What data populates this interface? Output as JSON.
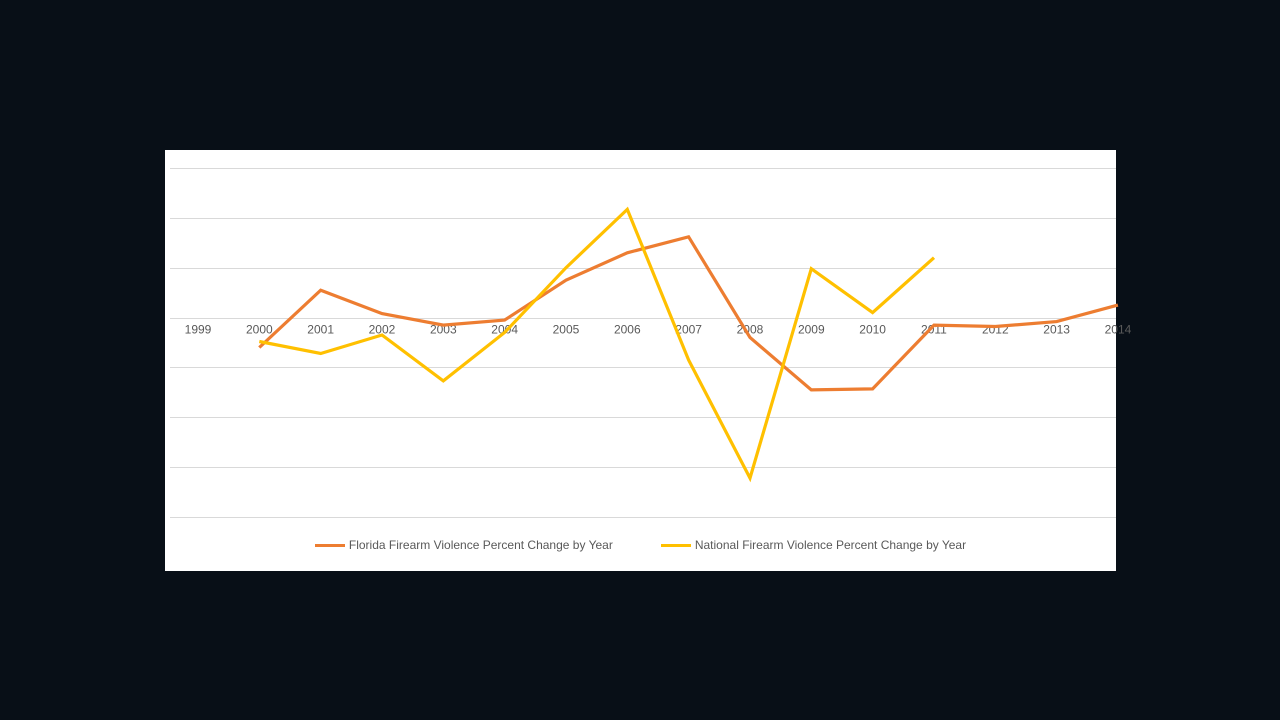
{
  "colors": {
    "florida": "#ed7d31",
    "national": "#ffc000",
    "background": "#080f17",
    "panel": "#ffffff",
    "grid": "#d9d9d9"
  },
  "chart_data": {
    "type": "line",
    "title": "",
    "xlabel": "",
    "ylabel": "",
    "categories": [
      "1999",
      "2000",
      "2001",
      "2002",
      "2003",
      "2004",
      "2005",
      "2006",
      "2007",
      "2008",
      "2009",
      "2010",
      "2011",
      "2012",
      "2013",
      "2014"
    ],
    "grid": true,
    "y_tick_labels_visible": false,
    "legend_placement": "bottom",
    "series": [
      {
        "name": "Florida Firearm Violence Percent Change by Year",
        "color": "#ed7d31",
        "values": [
          null,
          -0.6,
          0.55,
          0.08,
          -0.15,
          -0.05,
          0.75,
          1.3,
          1.62,
          -0.4,
          -1.45,
          -1.43,
          -0.15,
          -0.18,
          -0.08,
          0.25
        ]
      },
      {
        "name": "National Firearm Violence Percent Change by Year",
        "color": "#ffc000",
        "values": [
          null,
          -0.48,
          -0.72,
          -0.35,
          -1.27,
          -0.3,
          1.0,
          2.17,
          -0.85,
          -3.22,
          0.98,
          0.1,
          1.2,
          null,
          null,
          null
        ]
      }
    ],
    "ylim": [
      -4,
      3
    ]
  }
}
